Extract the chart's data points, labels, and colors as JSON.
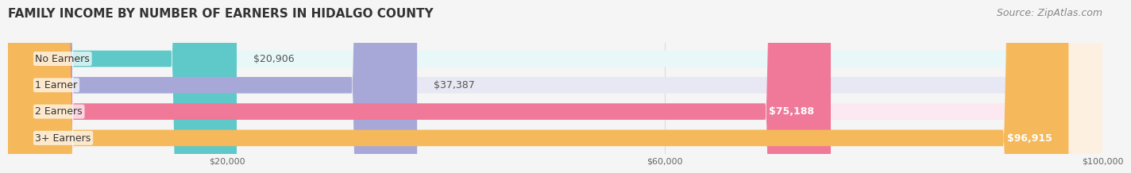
{
  "title": "FAMILY INCOME BY NUMBER OF EARNERS IN HIDALGO COUNTY",
  "source": "Source: ZipAtlas.com",
  "categories": [
    "No Earners",
    "1 Earner",
    "2 Earners",
    "3+ Earners"
  ],
  "values": [
    20906,
    37387,
    75188,
    96915
  ],
  "bar_colors": [
    "#5fc8c8",
    "#a8a8d8",
    "#f07898",
    "#f5b85a"
  ],
  "bg_colors": [
    "#e8f8f8",
    "#e8e8f4",
    "#fce8f0",
    "#fdf0e0"
  ],
  "label_colors": [
    "#333333",
    "#333333",
    "#ffffff",
    "#ffffff"
  ],
  "value_labels": [
    "$20,906",
    "$37,387",
    "$75,188",
    "$96,915"
  ],
  "xlim": [
    0,
    100000
  ],
  "xticks": [
    20000,
    60000,
    100000
  ],
  "xtick_labels": [
    "$20,000",
    "$60,000",
    "$100,000"
  ],
  "title_fontsize": 11,
  "source_fontsize": 9,
  "label_fontsize": 9,
  "value_fontsize": 9,
  "background_color": "#f5f5f5"
}
